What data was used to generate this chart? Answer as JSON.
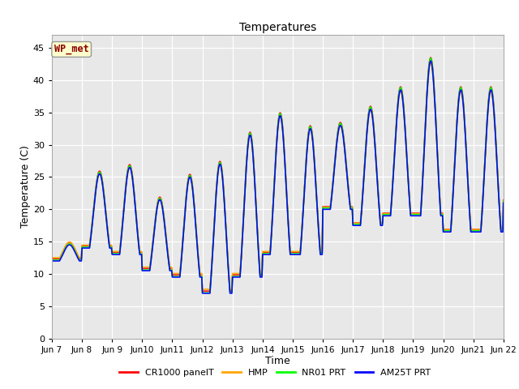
{
  "title": "Temperatures",
  "xlabel": "Time",
  "ylabel": "Temperature (C)",
  "ylim": [
    0,
    47
  ],
  "yticks": [
    0,
    5,
    10,
    15,
    20,
    25,
    30,
    35,
    40,
    45
  ],
  "annotation_text": "WP_met",
  "annotation_color": "#8B0000",
  "annotation_bg": "#FFFFCC",
  "legend_labels": [
    "CR1000 panelT",
    "HMP",
    "NR01 PRT",
    "AM25T PRT"
  ],
  "legend_colors": [
    "red",
    "orange",
    "lime",
    "blue"
  ],
  "line_width": 1.2,
  "facecolor": "#E8E8E8",
  "grid_color": "white",
  "start_day": 7,
  "end_day": 22,
  "daily_cycles": [
    {
      "day": 7,
      "min_t": 12.0,
      "max_t": 14.5
    },
    {
      "day": 8,
      "min_t": 14.0,
      "max_t": 25.5
    },
    {
      "day": 9,
      "min_t": 13.0,
      "max_t": 26.5
    },
    {
      "day": 10,
      "min_t": 10.5,
      "max_t": 21.5
    },
    {
      "day": 11,
      "min_t": 9.5,
      "max_t": 25.0
    },
    {
      "day": 12,
      "min_t": 7.0,
      "max_t": 27.0
    },
    {
      "day": 13,
      "min_t": 9.5,
      "max_t": 31.5
    },
    {
      "day": 14,
      "min_t": 13.0,
      "max_t": 34.5
    },
    {
      "day": 15,
      "min_t": 13.0,
      "max_t": 32.5
    },
    {
      "day": 16,
      "min_t": 20.0,
      "max_t": 33.0
    },
    {
      "day": 17,
      "min_t": 17.5,
      "max_t": 35.5
    },
    {
      "day": 18,
      "min_t": 19.0,
      "max_t": 38.5
    },
    {
      "day": 19,
      "min_t": 19.0,
      "max_t": 43.0
    },
    {
      "day": 20,
      "min_t": 16.5,
      "max_t": 38.5
    },
    {
      "day": 21,
      "min_t": 16.5,
      "max_t": 38.5
    },
    {
      "day": 22,
      "min_t": 21.0,
      "max_t": 21.0
    }
  ],
  "offsets": {
    "CR1000 panelT": {
      "scale": 1.005,
      "shift": 0.3
    },
    "HMP": {
      "scale": 0.975,
      "shift": 0.8
    },
    "NR01 PRT": {
      "scale": 1.01,
      "shift": 0.0
    },
    "AM25T PRT": {
      "scale": 1.0,
      "shift": 0.0
    }
  },
  "xtick_labels": [
    "Jun 7",
    "Jun 8",
    "Jun 9",
    "Jun10",
    "Jun11",
    "Jun12",
    "Jun13",
    "Jun14",
    "Jun15",
    "Jun16",
    "Jun17",
    "Jun18",
    "Jun19",
    "Jun20",
    "Jun21",
    "Jun 22"
  ]
}
